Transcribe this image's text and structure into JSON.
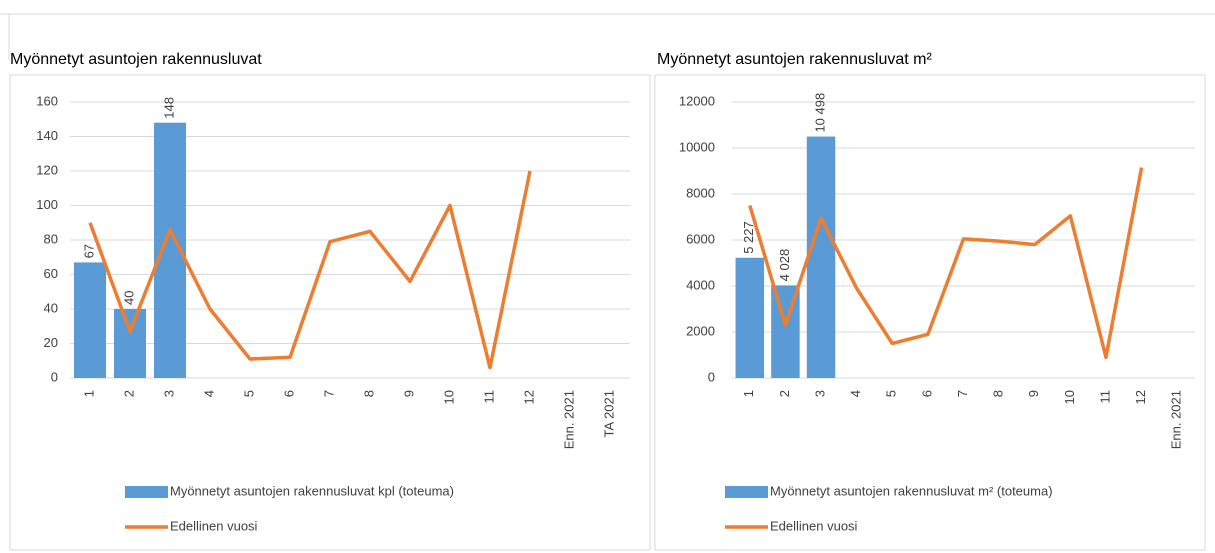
{
  "chart_data": [
    {
      "type": "combo",
      "title": "Myönnetyt asuntojen rakennusluvat",
      "categories": [
        "1",
        "2",
        "3",
        "4",
        "5",
        "6",
        "7",
        "8",
        "9",
        "10",
        "11",
        "12",
        "Enn. 2021",
        "TA 2021"
      ],
      "series": [
        {
          "name": "Myönnetyt asuntojen rakennusluvat kpl (toteuma)",
          "type": "bar",
          "color": "#5b9bd5",
          "values": [
            67,
            40,
            148,
            null,
            null,
            null,
            null,
            null,
            null,
            null,
            null,
            null,
            null,
            null
          ]
        },
        {
          "name": "Edellinen vuosi",
          "type": "line",
          "color": "#ed7d31",
          "values": [
            90,
            27,
            86,
            40,
            11,
            12,
            79,
            85,
            56,
            100,
            6,
            120,
            null,
            null
          ]
        }
      ],
      "ylim": [
        0,
        160
      ],
      "yticks": [
        0,
        20,
        40,
        60,
        80,
        100,
        120,
        140,
        160
      ],
      "grid": true,
      "legend": "bottom"
    },
    {
      "type": "combo",
      "title": "Myönnetyt asuntojen rakennusluvat m²",
      "categories": [
        "1",
        "2",
        "3",
        "4",
        "5",
        "6",
        "7",
        "8",
        "9",
        "10",
        "11",
        "12",
        "Enn. 2021"
      ],
      "series": [
        {
          "name": "Myönnetyt asuntojen rakennusluvat m² (toteuma)",
          "type": "bar",
          "color": "#5b9bd5",
          "values": [
            5227,
            4028,
            10498,
            null,
            null,
            null,
            null,
            null,
            null,
            null,
            null,
            null,
            null
          ],
          "value_labels": [
            "5 227",
            "4 028",
            "10 498",
            null,
            null,
            null,
            null,
            null,
            null,
            null,
            null,
            null,
            null
          ]
        },
        {
          "name": "Edellinen vuosi",
          "type": "line",
          "color": "#ed7d31",
          "values": [
            7500,
            2300,
            6950,
            3900,
            1500,
            1900,
            6050,
            5950,
            5800,
            7050,
            900,
            9150,
            null
          ]
        }
      ],
      "ylim": [
        0,
        12000
      ],
      "yticks": [
        0,
        2000,
        4000,
        6000,
        8000,
        10000,
        12000
      ],
      "grid": true,
      "legend": "bottom"
    }
  ]
}
